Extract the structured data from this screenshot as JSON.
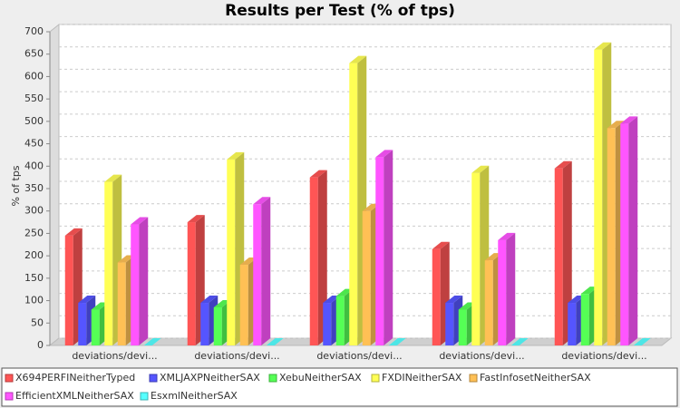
{
  "chart_data": {
    "type": "bar3d",
    "title": "Results per Test (% of tps)",
    "y_label": "% of tps",
    "categories": [
      "deviations/devi...",
      "deviations/devi...",
      "deviations/devi...",
      "deviations/devi...",
      "deviations/devi..."
    ],
    "series": [
      {
        "name": "X694PERFINeitherTyped",
        "color": "#ff5555",
        "values": [
          245,
          275,
          375,
          215,
          395
        ]
      },
      {
        "name": "XMLJAXPNeitherSAX",
        "color": "#5555ff",
        "values": [
          95,
          95,
          95,
          95,
          95
        ]
      },
      {
        "name": "XebuNeitherSAX",
        "color": "#55ff55",
        "values": [
          80,
          85,
          110,
          80,
          115
        ]
      },
      {
        "name": "FXDINeitherSAX",
        "color": "#ffff55",
        "values": [
          365,
          415,
          630,
          385,
          660
        ]
      },
      {
        "name": "FastInfosetNeitherSAX",
        "color": "#ffc055",
        "values": [
          185,
          180,
          300,
          190,
          485
        ]
      },
      {
        "name": "EfficientXMLNeitherSAX",
        "color": "#ff55ff",
        "values": [
          270,
          315,
          420,
          235,
          495
        ]
      },
      {
        "name": "EsxmlNeitherSAX",
        "color": "#55ffff",
        "values": [
          0,
          0,
          0,
          0,
          0
        ]
      }
    ],
    "ylim": [
      0,
      700
    ],
    "yticks": [
      0,
      50,
      100,
      150,
      200,
      250,
      300,
      350,
      400,
      450,
      500,
      550,
      600,
      650,
      700
    ],
    "grid": true,
    "legend": "bottom"
  }
}
